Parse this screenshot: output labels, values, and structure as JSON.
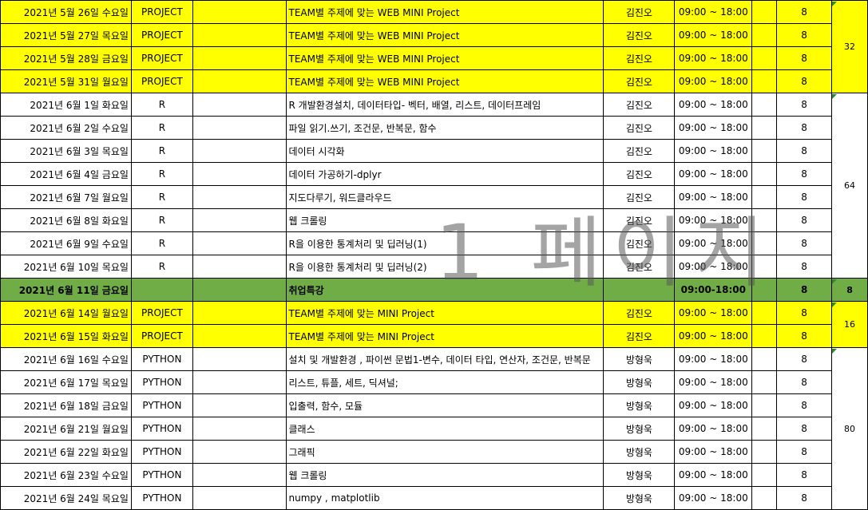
{
  "colors": {
    "project_highlight": "#ffff00",
    "event_highlight": "#70ad47",
    "grid": "#000000",
    "watermark": "#5a5a5a"
  },
  "watermark": "1 페이지",
  "rows": [
    {
      "date": "2021년 5월 26일 수요일",
      "category": "PROJECT",
      "topic": "TEAM별 주제에 맞는 WEB MINI Project",
      "instructor": "김진오",
      "time": "09:00 ~ 18:00",
      "hours": "8",
      "style": "yellow"
    },
    {
      "date": "2021년 5월 27일 목요일",
      "category": "PROJECT",
      "topic": "TEAM별 주제에 맞는 WEB MINI Project",
      "instructor": "김진오",
      "time": "09:00 ~ 18:00",
      "hours": "8",
      "style": "yellow"
    },
    {
      "date": "2021년 5월 28일 금요일",
      "category": "PROJECT",
      "topic": "TEAM별 주제에 맞는 WEB MINI Project",
      "instructor": "김진오",
      "time": "09:00 ~ 18:00",
      "hours": "8",
      "style": "yellow"
    },
    {
      "date": "2021년 5월 31일 월요일",
      "category": "PROJECT",
      "topic": "TEAM별 주제에 맞는 WEB MINI Project",
      "instructor": "김진오",
      "time": "09:00 ~ 18:00",
      "hours": "8",
      "style": "yellow"
    },
    {
      "date": "2021년 6월 1일 화요일",
      "category": "R",
      "topic": "R 개발환경설치, 데이터타입- 벡터, 배열, 리스트, 데이터프레임",
      "instructor": "김진오",
      "time": "09:00 ~ 18:00",
      "hours": "8",
      "style": "white"
    },
    {
      "date": "2021년 6월 2일 수요일",
      "category": "R",
      "topic": "파일 읽기.쓰기, 조건문, 반복문, 함수",
      "instructor": "김진오",
      "time": "09:00 ~ 18:00",
      "hours": "8",
      "style": "white"
    },
    {
      "date": "2021년 6월 3일 목요일",
      "category": "R",
      "topic": "데이터 시각화",
      "instructor": "김진오",
      "time": "09:00 ~ 18:00",
      "hours": "8",
      "style": "white"
    },
    {
      "date": "2021년 6월 4일 금요일",
      "category": "R",
      "topic": "데이터 가공하기-dplyr",
      "instructor": "김진오",
      "time": "09:00 ~ 18:00",
      "hours": "8",
      "style": "white"
    },
    {
      "date": "2021년 6월 7일 월요일",
      "category": "R",
      "topic": "지도다루기, 워드클라우드",
      "instructor": "김진오",
      "time": "09:00 ~ 18:00",
      "hours": "8",
      "style": "white"
    },
    {
      "date": "2021년 6월 8일 화요일",
      "category": "R",
      "topic": "웹 크롤링",
      "instructor": "김진오",
      "time": "09:00 ~ 18:00",
      "hours": "8",
      "style": "white"
    },
    {
      "date": "2021년 6월 9일 수요일",
      "category": "R",
      "topic": "R을 이용한 통계처리 및 딥러닝(1)",
      "instructor": "김진오",
      "time": "09:00 ~ 18:00",
      "hours": "8",
      "style": "white"
    },
    {
      "date": "2021년 6월 10일 목요일",
      "category": "R",
      "topic": "R을 이용한 통계처리 및 딥러닝(2)",
      "instructor": "김진오",
      "time": "09:00 ~ 18:00",
      "hours": "8",
      "style": "white"
    },
    {
      "date": "2021년 6월 11일 금요일",
      "category": "",
      "topic": "취업특강",
      "instructor": "",
      "time": "09:00-18:00",
      "hours": "8",
      "style": "green"
    },
    {
      "date": "2021년 6월 14일 월요일",
      "category": "PROJECT",
      "topic": "TEAM별 주제에 맞는 MINI Project",
      "instructor": "김진오",
      "time": "09:00 ~ 18:00",
      "hours": "8",
      "style": "yellow"
    },
    {
      "date": "2021년 6월 15일 화요일",
      "category": "PROJECT",
      "topic": "TEAM별 주제에 맞는 MINI Project",
      "instructor": "김진오",
      "time": "09:00 ~ 18:00",
      "hours": "8",
      "style": "yellow"
    },
    {
      "date": "2021년 6월 16일 수요일",
      "category": "PYTHON",
      "topic": "설치 및 개발환경 , 파이썬 문법1-변수, 데이터 타입, 연산자, 조건문, 반복문",
      "instructor": "방형욱",
      "time": "09:00 ~ 18:00",
      "hours": "8",
      "style": "white"
    },
    {
      "date": "2021년 6월 17일 목요일",
      "category": "PYTHON",
      "topic": "리스트, 튜플, 세트, 딕셔널;",
      "instructor": "방형욱",
      "time": "09:00 ~ 18:00",
      "hours": "8",
      "style": "white"
    },
    {
      "date": "2021년 6월 18일 금요일",
      "category": "PYTHON",
      "topic": "입출력, 함수, 모듈",
      "instructor": "방형욱",
      "time": "09:00 ~ 18:00",
      "hours": "8",
      "style": "white"
    },
    {
      "date": "2021년 6월 21일 월요일",
      "category": "PYTHON",
      "topic": "클래스",
      "instructor": "방형욱",
      "time": "09:00 ~ 18:00",
      "hours": "8",
      "style": "white"
    },
    {
      "date": "2021년 6월 22일 화요일",
      "category": "PYTHON",
      "topic": "그래픽",
      "instructor": "방형욱",
      "time": "09:00 ~ 18:00",
      "hours": "8",
      "style": "white"
    },
    {
      "date": "2021년 6월 23일 수요일",
      "category": "PYTHON",
      "topic": "웹 크롤링",
      "instructor": "방형욱",
      "time": "09:00 ~ 18:00",
      "hours": "8",
      "style": "white"
    },
    {
      "date": "2021년 6월 24일 목요일",
      "category": "PYTHON",
      "topic": "numpy , matplotlib",
      "instructor": "방형욱",
      "time": "09:00 ~ 18:00",
      "hours": "8",
      "style": "white"
    }
  ],
  "groups": [
    {
      "start": 0,
      "span": 4,
      "total": "32",
      "style": "yellow"
    },
    {
      "start": 4,
      "span": 8,
      "total": "64",
      "style": "white"
    },
    {
      "start": 12,
      "span": 1,
      "total": "8",
      "style": "green"
    },
    {
      "start": 13,
      "span": 2,
      "total": "16",
      "style": "yellow"
    },
    {
      "start": 15,
      "span": 7,
      "total": "80",
      "style": "white"
    }
  ]
}
